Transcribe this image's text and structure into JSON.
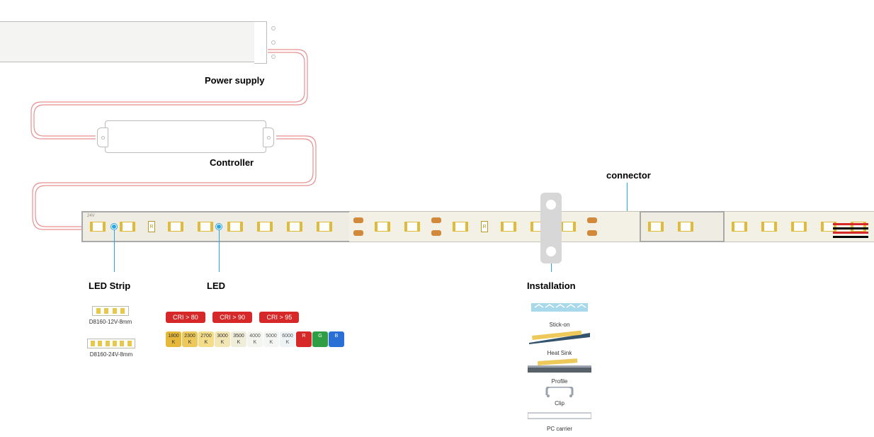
{
  "labels": {
    "power_supply": "Power supply",
    "controller": "Controller",
    "connector": "connector",
    "led_strip": "LED Strip",
    "led": "LED",
    "installation": "Installation"
  },
  "strip_models": {
    "a": "D8160-12V-8mm",
    "b": "D8160-24V-8mm"
  },
  "cri": {
    "a": "CRI > 80",
    "b": "CRI > 90",
    "c": "CRI > 95"
  },
  "cct": [
    {
      "label": "1800 K",
      "bg": "#e6b83a",
      "fg": "#333"
    },
    {
      "label": "2300 K",
      "bg": "#ecc95a",
      "fg": "#333"
    },
    {
      "label": "2700 K",
      "bg": "#f3dd8a",
      "fg": "#333"
    },
    {
      "label": "3000 K",
      "bg": "#f1e6b4",
      "fg": "#333"
    },
    {
      "label": "3500 K",
      "bg": "#efeeda",
      "fg": "#333"
    },
    {
      "label": "4000 K",
      "bg": "#f5f5ef",
      "fg": "#555"
    },
    {
      "label": "5000 K",
      "bg": "#f4f6f4",
      "fg": "#555"
    },
    {
      "label": "6000 K",
      "bg": "#eef3f5",
      "fg": "#555"
    },
    {
      "label": "R",
      "bg": "#d62828",
      "fg": "#fff"
    },
    {
      "label": "G",
      "bg": "#2e9e44",
      "fg": "#fff"
    },
    {
      "label": "B",
      "bg": "#2a6fd6",
      "fg": "#fff"
    }
  ],
  "install": {
    "stick_on": "Stick-on",
    "heat_sink": "Heat Sink",
    "profile": "Profile",
    "clip": "Clip",
    "pc_carrier": "PC carrier"
  },
  "tail_colors": [
    "#d62828",
    "#000000",
    "#d62828",
    "#000000"
  ],
  "colors": {
    "pointer": "#2aa6e0",
    "wire": "#e89090",
    "psu_fill": "#f4f4f2",
    "strip_fill": "#f3f0e6",
    "led_gold": "#e0bb3a",
    "bracket": "#d7d7d7"
  },
  "voltage_mark": "24V"
}
